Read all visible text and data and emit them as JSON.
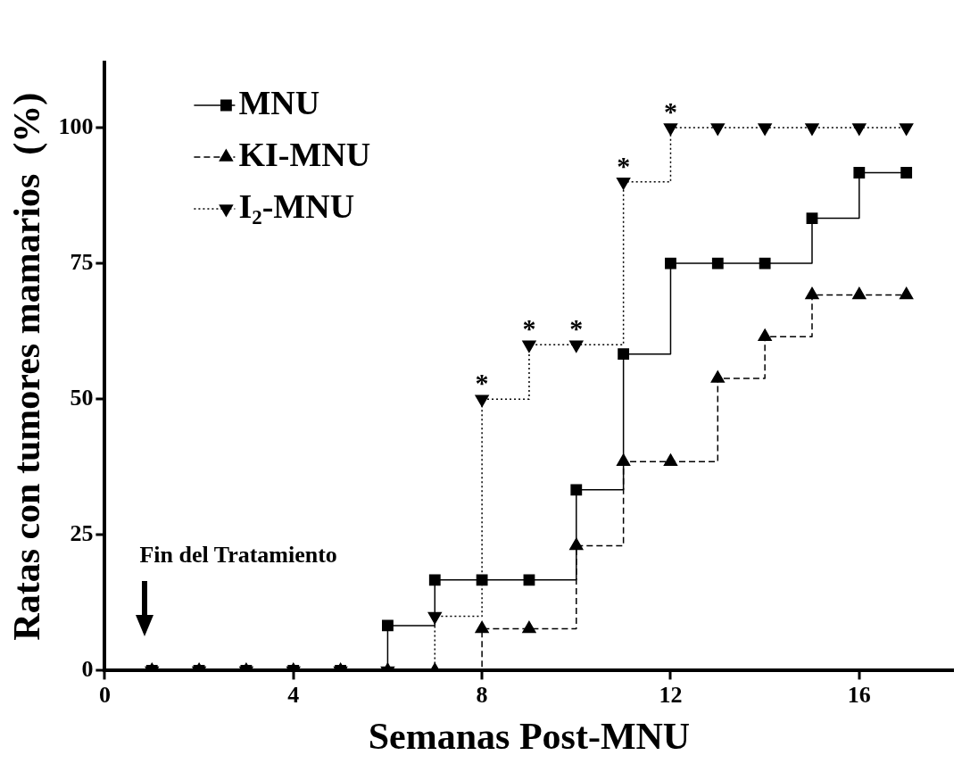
{
  "chart_data": {
    "type": "step",
    "xlabel": "Semanas Post-MNU",
    "ylabel": "Ratas con tumores mamarios  (%)",
    "x": [
      1,
      2,
      3,
      4,
      5,
      6,
      7,
      8,
      9,
      10,
      11,
      12,
      13,
      14,
      15,
      16,
      17
    ],
    "series": [
      {
        "name": "MNU",
        "color": "#000000",
        "marker": "square",
        "line_style": "solid",
        "values": [
          0,
          0,
          0,
          0,
          0,
          8.3,
          16.7,
          16.7,
          16.7,
          33.3,
          58.3,
          75,
          75,
          75,
          83.3,
          91.7,
          91.7
        ]
      },
      {
        "name": "KI-MNU",
        "color": "#000000",
        "marker": "triangle",
        "line_style": "dashed",
        "values": [
          0,
          0,
          0,
          0,
          0,
          0,
          0,
          7.7,
          7.7,
          23,
          38.5,
          38.5,
          53.8,
          61.5,
          69.2,
          69.2,
          69.2
        ]
      },
      {
        "name": "I$_{2}$-MNU",
        "color": "#000000",
        "marker": "triangle-down",
        "line_style": "dotted",
        "values": [
          0,
          0,
          0,
          0,
          0,
          0,
          10,
          50,
          60,
          60,
          90,
          100,
          100,
          100,
          100,
          100,
          100
        ]
      }
    ],
    "xlim": [
      0,
      18
    ],
    "xticks": [
      0,
      4,
      8,
      12,
      16
    ],
    "ylim": [
      0,
      112
    ],
    "yticks": [
      0,
      25,
      50,
      75,
      100
    ],
    "grid": false,
    "legend": "top left",
    "annotations": [
      "Fin del Tratamiento",
      {
        "text": "*",
        "x": 8,
        "y": 50
      },
      {
        "text": "*",
        "x": 9,
        "y": 60
      },
      {
        "text": "*",
        "x": 10,
        "y": 60
      },
      {
        "text": "*",
        "x": 11,
        "y": 90
      },
      {
        "text": "*",
        "x": 12,
        "y": 100
      }
    ]
  }
}
